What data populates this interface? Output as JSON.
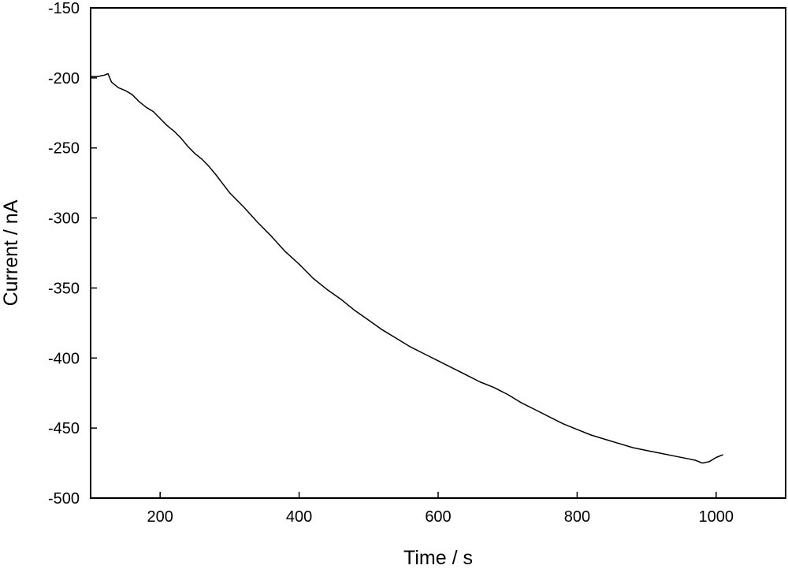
{
  "chart_data": {
    "type": "line",
    "title": "",
    "xlabel": "Time / s",
    "ylabel": "Current / nA",
    "xlim": [
      100,
      1100
    ],
    "ylim": [
      -500,
      -150
    ],
    "xticks": [
      200,
      400,
      600,
      800,
      1000
    ],
    "yticks": [
      -150,
      -200,
      -250,
      -300,
      -350,
      -400,
      -450,
      -500
    ],
    "grid": false,
    "legend": "none",
    "line_color": "#000000",
    "series": [
      {
        "x": [
          100,
          110,
          120,
          125,
          130,
          140,
          150,
          160,
          170,
          180,
          190,
          200,
          210,
          220,
          230,
          240,
          250,
          260,
          270,
          280,
          300,
          320,
          340,
          360,
          380,
          400,
          420,
          440,
          460,
          480,
          500,
          520,
          540,
          560,
          580,
          600,
          620,
          640,
          660,
          680,
          700,
          720,
          740,
          760,
          780,
          800,
          820,
          840,
          860,
          880,
          900,
          920,
          940,
          960,
          970,
          980,
          990,
          1000,
          1010
        ],
        "y": [
          -199,
          -199,
          -198,
          -197,
          -203,
          -207,
          -209,
          -212,
          -217,
          -221,
          -224,
          -229,
          -234,
          -238,
          -243,
          -249,
          -254,
          -258,
          -263,
          -269,
          -282,
          -292,
          -303,
          -313,
          -324,
          -333,
          -343,
          -351,
          -358,
          -366,
          -373,
          -380,
          -386,
          -392,
          -397,
          -402,
          -407,
          -412,
          -417,
          -421,
          -426,
          -432,
          -437,
          -442,
          -447,
          -451,
          -455,
          -458,
          -461,
          -464,
          -466,
          -468,
          -470,
          -472,
          -473,
          -475,
          -474,
          -471,
          -469
        ]
      }
    ]
  }
}
